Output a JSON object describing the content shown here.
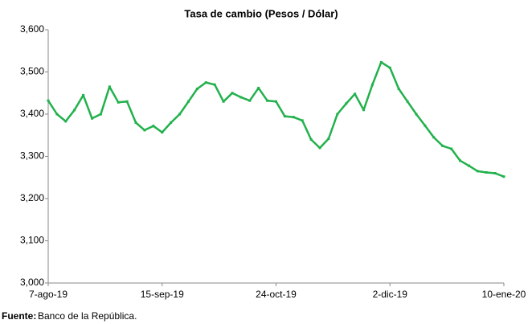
{
  "chart_data": {
    "type": "line",
    "title": "Tasa de cambio (Pesos / Dólar)",
    "source_label": "Fuente:",
    "source": "Banco de la República.",
    "categories": [
      "7-ago-19",
      null,
      null,
      null,
      null,
      null,
      null,
      null,
      null,
      null,
      null,
      null,
      null,
      "15-sep-19",
      null,
      null,
      null,
      null,
      null,
      null,
      null,
      null,
      null,
      null,
      null,
      null,
      "24-oct-19",
      null,
      null,
      null,
      null,
      null,
      null,
      null,
      null,
      null,
      null,
      null,
      null,
      "2-dic-19",
      null,
      null,
      null,
      null,
      null,
      null,
      null,
      null,
      null,
      null,
      null,
      null,
      "10-ene-20"
    ],
    "series": [
      {
        "name": "Tasa de cambio",
        "color": "#22b14c",
        "values": [
          3432,
          3400,
          3383,
          3410,
          3445,
          3390,
          3400,
          3465,
          3428,
          3430,
          3380,
          3362,
          3372,
          3357,
          3380,
          3400,
          3430,
          3460,
          3475,
          3470,
          3430,
          3450,
          3440,
          3432,
          3462,
          3432,
          3430,
          3395,
          3393,
          3385,
          3340,
          3320,
          3342,
          3400,
          3425,
          3448,
          3410,
          3470,
          3523,
          3510,
          3460,
          3430,
          3400,
          3373,
          3345,
          3325,
          3318,
          3290,
          3278,
          3265,
          3262,
          3260,
          3252
        ]
      }
    ],
    "ylim": [
      3000,
      3600
    ],
    "yticks": [
      {
        "value": 3000,
        "label": "3,000"
      },
      {
        "value": 3100,
        "label": "3,100"
      },
      {
        "value": 3200,
        "label": "3,200"
      },
      {
        "value": 3300,
        "label": "3,300"
      },
      {
        "value": 3400,
        "label": "3,400"
      },
      {
        "value": 3500,
        "label": "3,500"
      },
      {
        "value": 3600,
        "label": "3,600"
      }
    ],
    "grid": false
  }
}
